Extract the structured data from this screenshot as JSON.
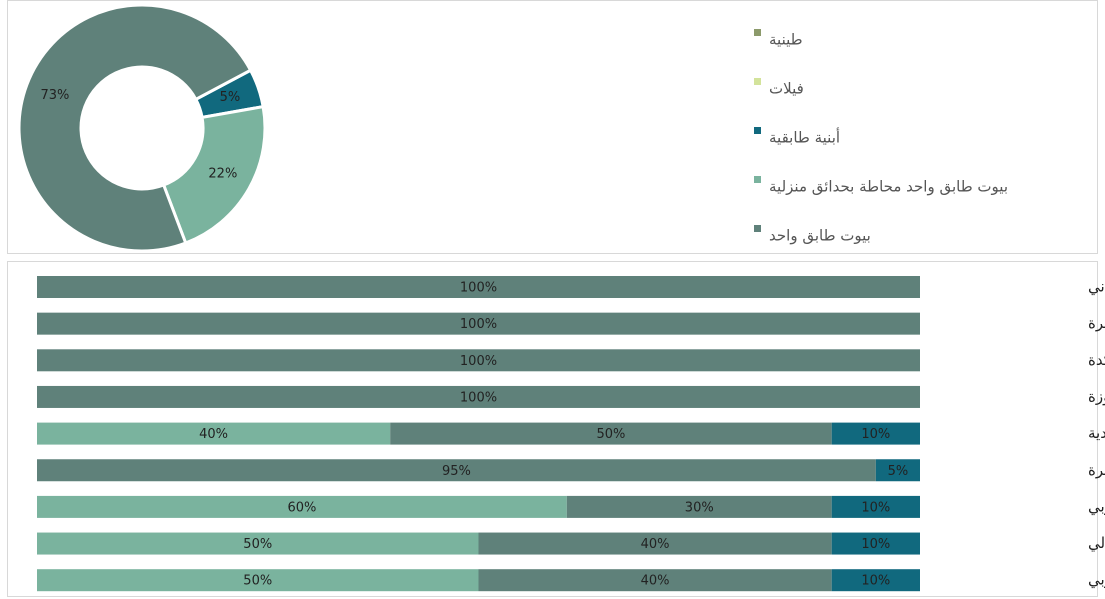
{
  "chart_data": [
    {
      "type": "donut",
      "categories": [
        "طينية",
        "فيلات",
        "أبنية طابقية",
        "بيوت طابق واحد محاطة بحدائق منزلية",
        "بيوت طابق واحد"
      ],
      "values": [
        0,
        0,
        5,
        22,
        73
      ],
      "value_labels": [
        null,
        null,
        "5%",
        "22%",
        "73%"
      ],
      "colors": [
        "#8c9a6b",
        "#d3e39b",
        "#11697e",
        "#7ab39e",
        "#5f817a"
      ]
    },
    {
      "type": "stacked-bar-horizontal",
      "categories": [
        "كسرة تحتاني",
        "شمالي حمّار الكسرة",
        "حي مركدة",
        "حي المروزة",
        "حي البلدية",
        "حمّار الكسرة",
        "الحي الغربي",
        "الحي الشمالي",
        "الحي الجنوبي"
      ],
      "xlim": [
        0,
        100
      ],
      "series": [
        {
          "name": "بيوت طابق واحد محاطة بحدائق منزلية",
          "color": "#7ab39e",
          "values": [
            0,
            0,
            0,
            0,
            40,
            0,
            60,
            50,
            50
          ],
          "value_labels": [
            null,
            null,
            null,
            null,
            "40%",
            null,
            "60%",
            "50%",
            "50%"
          ]
        },
        {
          "name": "بيوت طابق واحد",
          "color": "#5f817a",
          "values": [
            100,
            100,
            100,
            100,
            50,
            95,
            30,
            40,
            40
          ],
          "value_labels": [
            "100%",
            "100%",
            "100%",
            "100%",
            "50%",
            "95%",
            "30%",
            "40%",
            "40%"
          ]
        },
        {
          "name": "أبنية طابقية",
          "color": "#11697e",
          "values": [
            0,
            0,
            0,
            0,
            10,
            5,
            10,
            10,
            10
          ],
          "value_labels": [
            null,
            null,
            null,
            null,
            "10%",
            "5%",
            "10%",
            "10%",
            "10%"
          ]
        }
      ]
    }
  ]
}
